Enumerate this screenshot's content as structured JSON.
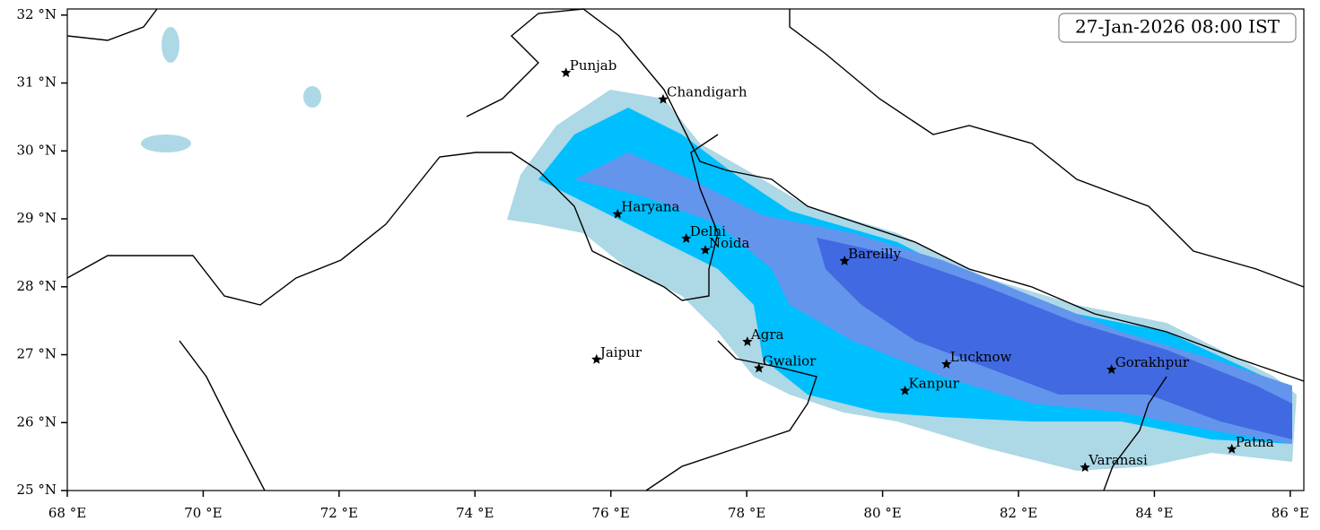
{
  "chart_data": {
    "type": "map",
    "title": "27-Jan-2026 08:00 IST",
    "xlim": [
      68,
      86.2
    ],
    "ylim": [
      25,
      32.09
    ],
    "xticks": [
      {
        "value": 68,
        "label": "68 °E"
      },
      {
        "value": 70,
        "label": "70 °E"
      },
      {
        "value": 72,
        "label": "72 °E"
      },
      {
        "value": 74,
        "label": "74 °E"
      },
      {
        "value": 76,
        "label": "76 °E"
      },
      {
        "value": 78,
        "label": "78 °E"
      },
      {
        "value": 80,
        "label": "80 °E"
      },
      {
        "value": 82,
        "label": "82 °E"
      },
      {
        "value": 84,
        "label": "84 °E"
      },
      {
        "value": 86,
        "label": "86 °E"
      }
    ],
    "yticks": [
      {
        "value": 25,
        "label": "25 °N"
      },
      {
        "value": 26,
        "label": "26 °N"
      },
      {
        "value": 27,
        "label": "27 °N"
      },
      {
        "value": 28,
        "label": "28 °N"
      },
      {
        "value": 29,
        "label": "29 °N"
      },
      {
        "value": 30,
        "label": "30 °N"
      },
      {
        "value": 31,
        "label": "31 °N"
      },
      {
        "value": 32,
        "label": "32 °N"
      }
    ],
    "cities": {
      "names": [
        "Punjab",
        "Chandigarh",
        "Haryana",
        "Delhi",
        "Noida",
        "Bareilly",
        "Agra",
        "Jaipur",
        "Gwalior",
        "Lucknow",
        "Gorakhpur",
        "Kanpur",
        "Patna",
        "Varanasi"
      ],
      "lon": [
        75.34,
        76.77,
        76.1,
        77.11,
        77.39,
        79.44,
        78.01,
        75.79,
        78.18,
        80.94,
        83.37,
        80.33,
        85.14,
        82.98
      ],
      "lat": [
        31.15,
        30.76,
        29.07,
        28.71,
        28.54,
        28.38,
        27.19,
        26.93,
        26.8,
        26.86,
        26.78,
        26.47,
        25.61,
        25.34
      ]
    }
  }
}
